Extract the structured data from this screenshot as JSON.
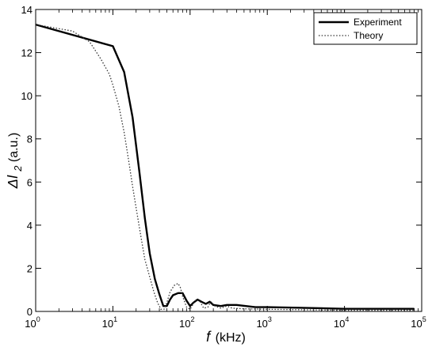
{
  "chart_data": {
    "type": "line",
    "title": "",
    "xscale": "log",
    "xlim": [
      1,
      100000
    ],
    "ylim": [
      0,
      14
    ],
    "xlabel": {
      "symbol": "f",
      "unit": "(kHz)"
    },
    "ylabel": {
      "symbol": "ΔI",
      "subscript": "2",
      "unit": "(a.u.)"
    },
    "xticks": [
      {
        "value": 1,
        "mantissa": "10",
        "exp": "0"
      },
      {
        "value": 10,
        "mantissa": "10",
        "exp": "1"
      },
      {
        "value": 100,
        "mantissa": "10",
        "exp": "2"
      },
      {
        "value": 1000,
        "mantissa": "10",
        "exp": "3"
      },
      {
        "value": 10000,
        "mantissa": "10",
        "exp": "4"
      },
      {
        "value": 100000,
        "mantissa": "10",
        "exp": "5"
      }
    ],
    "yticks": [
      0,
      2,
      4,
      6,
      8,
      10,
      12,
      14
    ],
    "grid": false,
    "legend_position": "top-right",
    "series": [
      {
        "name": "Experiment",
        "style": "solid",
        "color": "#000000",
        "points": [
          [
            1,
            13.3
          ],
          [
            10,
            12.3
          ],
          [
            14,
            11.1
          ],
          [
            18,
            9.0
          ],
          [
            22,
            6.5
          ],
          [
            26,
            4.3
          ],
          [
            30,
            2.7
          ],
          [
            35,
            1.5
          ],
          [
            40,
            0.8
          ],
          [
            45,
            0.25
          ],
          [
            50,
            0.25
          ],
          [
            55,
            0.55
          ],
          [
            60,
            0.75
          ],
          [
            70,
            0.85
          ],
          [
            80,
            0.85
          ],
          [
            90,
            0.5
          ],
          [
            100,
            0.25
          ],
          [
            110,
            0.4
          ],
          [
            125,
            0.55
          ],
          [
            140,
            0.45
          ],
          [
            160,
            0.35
          ],
          [
            180,
            0.45
          ],
          [
            200,
            0.3
          ],
          [
            250,
            0.25
          ],
          [
            300,
            0.3
          ],
          [
            400,
            0.3
          ],
          [
            700,
            0.2
          ],
          [
            1000,
            0.2
          ],
          [
            5000,
            0.15
          ],
          [
            10000,
            0.12
          ],
          [
            80000,
            0.12
          ]
        ]
      },
      {
        "name": "Theory",
        "style": "dotted",
        "color": "#333333",
        "points": [
          [
            1,
            13.3
          ],
          [
            3,
            13.0
          ],
          [
            5,
            12.5
          ],
          [
            7,
            11.7
          ],
          [
            9,
            11.0
          ],
          [
            10,
            10.5
          ],
          [
            12,
            9.5
          ],
          [
            14,
            8.3
          ],
          [
            16,
            7.0
          ],
          [
            18,
            5.8
          ],
          [
            20,
            4.8
          ],
          [
            23,
            3.5
          ],
          [
            26,
            2.4
          ],
          [
            30,
            1.6
          ],
          [
            34,
            0.9
          ],
          [
            38,
            0.4
          ],
          [
            42,
            0.1
          ],
          [
            46,
            0.1
          ],
          [
            50,
            0.4
          ],
          [
            55,
            0.9
          ],
          [
            62,
            1.2
          ],
          [
            70,
            1.3
          ],
          [
            75,
            1.1
          ],
          [
            80,
            0.7
          ],
          [
            90,
            0.2
          ],
          [
            100,
            0.1
          ],
          [
            110,
            0.35
          ],
          [
            120,
            0.55
          ],
          [
            135,
            0.45
          ],
          [
            150,
            0.15
          ],
          [
            170,
            0.2
          ],
          [
            185,
            0.45
          ],
          [
            210,
            0.25
          ],
          [
            250,
            0.15
          ],
          [
            300,
            0.25
          ],
          [
            350,
            0.15
          ],
          [
            500,
            0.12
          ],
          [
            1000,
            0.1
          ],
          [
            10000,
            0.05
          ],
          [
            80000,
            0.05
          ]
        ]
      }
    ]
  }
}
